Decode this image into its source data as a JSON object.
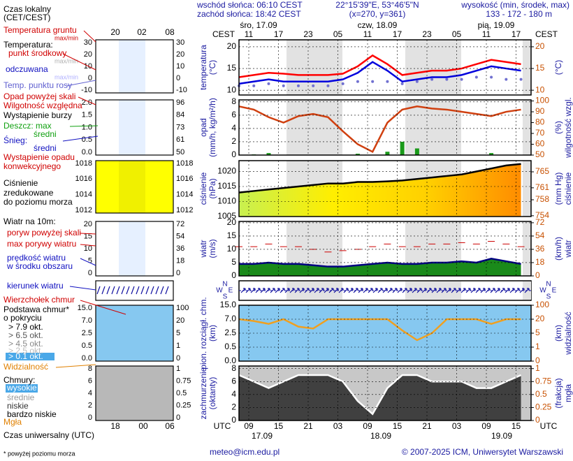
{
  "header": {
    "sunrise": "wschód słońca: 06:10 CEST",
    "sunset": "zachód słońca: 18:42 CEST",
    "coords": "22°15'39\"E, 53°46'5\"N",
    "grid_point": "(x=270, y=361)",
    "elevation_title": "wysokość (min, środek, max)",
    "elevation": "133 - 172 - 180 m"
  },
  "time": {
    "top_zone": "CEST",
    "top_dates": [
      "śro, 17.09",
      "czw, 18.09",
      "pią, 19.09"
    ],
    "top_hours": [
      "11",
      "17",
      "23",
      "05",
      "11",
      "17",
      "23",
      "05",
      "11",
      "17"
    ],
    "bottom_zone": "UTC",
    "bottom_hours": [
      "09",
      "15",
      "21",
      "03",
      "09",
      "15",
      "21",
      "03",
      "09",
      "15"
    ],
    "bottom_dates": [
      "17.09",
      "18.09",
      "19.09"
    ]
  },
  "panels": [
    {
      "left_label": [
        "temperatura",
        "(°C)"
      ],
      "right_label": [
        "(°C)"
      ],
      "ylim": [
        8.9,
        21.6
      ],
      "yticks": [
        20,
        15,
        10
      ],
      "y2lim": [
        8.9,
        21.6
      ],
      "y2ticks": [
        20,
        15,
        10
      ],
      "series": [
        {
          "kind": "line",
          "color": "#ff0000",
          "values": [
            13,
            13.5,
            14,
            13.8,
            13.5,
            13.5,
            13.5,
            13.8,
            15.5,
            18,
            16,
            13.5,
            14,
            14.5,
            14.5,
            15,
            16,
            17,
            16.5,
            16
          ]
        },
        {
          "kind": "line",
          "color": "#0000dd",
          "values": [
            11.5,
            12,
            12.5,
            12,
            12,
            12,
            12,
            12.5,
            14,
            16.5,
            14.5,
            12,
            12.5,
            13,
            13,
            13.5,
            14.5,
            15.5,
            15,
            14.5
          ]
        },
        {
          "kind": "dots",
          "color": "#7070d0",
          "values": [
            11,
            11,
            11.5,
            11,
            11,
            11,
            11,
            11.5,
            12,
            12,
            12,
            11.5,
            12,
            12.5,
            12.5,
            12.5,
            13,
            13,
            12.5,
            12.5
          ]
        }
      ]
    },
    {
      "left_label": [
        "opad",
        "(mm/h, kg/m²/h)"
      ],
      "right_label": [
        "(%)",
        "wilgotność wzgl."
      ],
      "ylim": [
        0,
        8.3
      ],
      "yticks": [
        8,
        6,
        4,
        2,
        0
      ],
      "y2lim": [
        50,
        101
      ],
      "y2ticks": [
        100,
        90,
        80,
        70,
        60,
        50
      ],
      "series": [
        {
          "kind": "bars",
          "color": "#1a9a1a",
          "values": [
            0,
            0.1,
            0.3,
            0,
            0,
            0,
            0,
            0,
            0.2,
            0,
            0.5,
            2,
            1,
            0,
            0,
            0,
            0,
            0.3,
            0,
            0
          ]
        },
        {
          "kind": "line",
          "axis": "y2",
          "color": "#d04010",
          "values": [
            95,
            92,
            85,
            80,
            86,
            88,
            85,
            72,
            60,
            53,
            80,
            92,
            95,
            93,
            92,
            90,
            88,
            86,
            90,
            92
          ]
        }
      ]
    },
    {
      "left_label": [
        "ciśnienie",
        "(hPa)"
      ],
      "right_label": [
        "(mm Hg)",
        "ciśnienie"
      ],
      "ylim": [
        1005,
        1023.6
      ],
      "yticks": [
        1020,
        1015,
        1010,
        1005
      ],
      "y2lim": [
        753.8,
        767.8
      ],
      "y2ticks": [
        765,
        761,
        758,
        754
      ],
      "series": [
        {
          "kind": "area",
          "color": "#000000",
          "fill": [
            "#c8f050",
            "#ffee00",
            "#ffd000",
            "#ff8c00"
          ],
          "values": [
            1013,
            1013.5,
            1014,
            1014.5,
            1015,
            1015.5,
            1016,
            1016,
            1016.5,
            1016.5,
            1016.7,
            1017,
            1017.5,
            1018,
            1018.5,
            1019,
            1020,
            1021,
            1022,
            1022.5
          ]
        }
      ]
    },
    {
      "left_label": [
        "wiatr",
        "(m/s)"
      ],
      "right_label": [
        "(km/h)",
        "wiatr"
      ],
      "ylim": [
        0,
        20.5
      ],
      "yticks": [
        20,
        15,
        10,
        5,
        0
      ],
      "y2lim": [
        0,
        73.8
      ],
      "y2ticks": [
        72,
        54,
        36,
        18,
        0
      ],
      "series": [
        {
          "kind": "area",
          "color": "#000080",
          "fill": [
            "#1a8a1a"
          ],
          "values": [
            4.5,
            4.5,
            5,
            4.5,
            4.5,
            4,
            3.5,
            3.5,
            4,
            4.5,
            5,
            4.5,
            4.5,
            5,
            5,
            5.5,
            5,
            6.5,
            5.5,
            4.5
          ]
        },
        {
          "kind": "dashes",
          "color": "#cc0000",
          "values": [
            11,
            11,
            12,
            11,
            11,
            10,
            9,
            9.5,
            10,
            11,
            12,
            11,
            11,
            12,
            12,
            12.5,
            12,
            13,
            12,
            11
          ]
        }
      ]
    },
    {
      "left_label": [
        "pion. rozciągł. chm.",
        "(km)"
      ],
      "right_label": [
        "(km)",
        "widzialność"
      ],
      "scale": "ticks",
      "yticks": [
        {
          "value": 15,
          "label": "15.0"
        },
        {
          "value": 7,
          "label": "7.0"
        },
        2.5,
        0.5,
        {
          "value": 0,
          "label": "0.0"
        }
      ],
      "y2ticks": [
        100,
        20,
        5,
        1,
        0
      ],
      "series": [
        {
          "kind": "line",
          "axis": "y2",
          "color": "#f0a020",
          "values": [
            20,
            18,
            15,
            20,
            12,
            10,
            20,
            20,
            20,
            20,
            20,
            8,
            3,
            5,
            20,
            20,
            20,
            15,
            20,
            20
          ]
        }
      ]
    },
    {
      "left_label": [
        "zachmurzenie",
        "(oktanty)"
      ],
      "right_label": [
        "(frakcja)",
        "mgła"
      ],
      "ylim": [
        0,
        8.4
      ],
      "yticks": [
        8,
        6,
        4,
        2,
        0
      ],
      "y2lim": [
        0,
        1.05
      ],
      "y2ticks": [
        1,
        0.75,
        0.5,
        0.25,
        0
      ],
      "series": [
        {
          "kind": "area",
          "color": "#ffffff",
          "fill": [
            "#404040"
          ],
          "values": [
            7,
            6,
            5,
            6,
            7,
            7,
            7,
            6,
            3,
            1,
            5,
            7,
            7,
            6,
            6,
            6,
            5,
            5,
            6,
            7
          ]
        }
      ]
    }
  ],
  "compass": [
    "N",
    "W",
    "S",
    "E"
  ],
  "mini": {
    "top_hours": [
      "20",
      "02",
      "08"
    ],
    "bottom_hours": [
      "18",
      "00",
      "06"
    ],
    "panels": [
      {
        "left": [
          30,
          20,
          10,
          0,
          -10
        ],
        "right": [
          30,
          20,
          10,
          0,
          -10
        ]
      },
      {
        "left": [
          {
            "value": 2,
            "label": "2.0"
          },
          1.5,
          {
            "value": 1,
            "label": "1.0"
          },
          0.5,
          {
            "value": 0,
            "label": "0.0"
          }
        ],
        "right": [
          96,
          84,
          73,
          61,
          50
        ]
      },
      {
        "left": [
          1018,
          1016,
          1014,
          1012
        ],
        "right": [
          1018,
          1016,
          1014,
          1012
        ]
      },
      {
        "left": [
          20,
          15,
          10,
          5,
          0
        ],
        "right": [
          72,
          54,
          36,
          18,
          0
        ]
      },
      {
        "left": [
          {
            "value": 15,
            "label": "15.0"
          },
          {
            "value": 7,
            "label": "7.0"
          },
          2.5,
          0.5,
          {
            "value": 0,
            "label": "0.0"
          }
        ],
        "right": [
          100,
          20,
          5,
          1,
          0
        ]
      },
      {
        "left": [
          8,
          6,
          4,
          2,
          0
        ],
        "right": [
          1,
          0.75,
          0.5,
          0.25,
          0
        ]
      }
    ]
  },
  "legend": [
    {
      "text": "Czas lokalny",
      "color": "#000"
    },
    {
      "text": "(CET/CEST)",
      "color": "#000"
    },
    {
      "text": "Temperatura gruntu",
      "color": "#d00000"
    },
    {
      "text": "max/min",
      "color": "#d00000"
    },
    {
      "text": "Temperatura:",
      "color": "#000"
    },
    {
      "text": "punkt środkowy",
      "color": "#d00000"
    },
    {
      "text": "max/min",
      "color": "#b0b0b0"
    },
    {
      "text": "odczuwana",
      "color": "#1010c0"
    },
    {
      "text": "max/min",
      "color": "#b0b0ff"
    },
    {
      "text": "Temp. punktu rosy",
      "color": "#6060d0"
    },
    {
      "text": "Opad powyżej skali",
      "color": "#d00000"
    },
    {
      "text": "Wilgotność względna",
      "color": "#d00000"
    },
    {
      "text": "Wystąpienie burzy",
      "color": "#000"
    },
    {
      "text": "Deszcz: max",
      "color": "#10a010"
    },
    {
      "text": "średni",
      "color": "#10a010"
    },
    {
      "text": "Śnieg:",
      "color": "#1010c0"
    },
    {
      "text": "średni",
      "color": "#1010c0"
    },
    {
      "text": "Wystąpienie opadu",
      "color": "#d00000"
    },
    {
      "text": "konwekcyjnego",
      "color": "#d00000"
    },
    {
      "text": "Ciśnienie",
      "color": "#000"
    },
    {
      "text": "zredukowane",
      "color": "#000"
    },
    {
      "text": "do poziomu morza",
      "color": "#000"
    },
    {
      "text": "Wiatr na 10m:",
      "color": "#000"
    },
    {
      "text": "poryw powyżej skali",
      "color": "#d00000"
    },
    {
      "text": "max porywy wiatru",
      "color": "#d00000"
    },
    {
      "text": "prędkość wiatru",
      "color": "#1010c0"
    },
    {
      "text": "w środku obszaru",
      "color": "#1010c0"
    },
    {
      "text": "kierunek wiatru",
      "color": "#1010c0"
    },
    {
      "text": "Wierzchołek chmur",
      "color": "#d00000"
    },
    {
      "text": "Podstawa chmur*",
      "color": "#000"
    },
    {
      "text": "o pokryciu",
      "color": "#000"
    },
    {
      "text": "> 7.9 okt.",
      "color": "#000"
    },
    {
      "text": "> 6.5 okt.",
      "color": "#555"
    },
    {
      "text": "> 4.5 okt.",
      "color": "#888"
    },
    {
      "text": "> 2.5 okt.",
      "color": "#bbb"
    },
    {
      "text": "> 0.1 okt.",
      "color": "#fff"
    },
    {
      "text": "Widzialność",
      "color": "#e08000"
    },
    {
      "text": "Chmury:",
      "color": "#000"
    },
    {
      "text": "wysokie",
      "color": "#fff"
    },
    {
      "text": "średnie",
      "color": "#999"
    },
    {
      "text": "niskie",
      "color": "#333"
    },
    {
      "text": "bardzo niskie",
      "color": "#000"
    },
    {
      "text": "Mgła",
      "color": "#e08000"
    },
    {
      "text": "Czas uniwersalny (UTC)",
      "color": "#000"
    },
    {
      "text": "* powyżej poziomu morza",
      "color": "#000"
    }
  ],
  "footer": {
    "email": "meteo@icm.edu.pl",
    "copyright": "© 2007-2025 ICM, Uniwersytet Warszawski"
  }
}
